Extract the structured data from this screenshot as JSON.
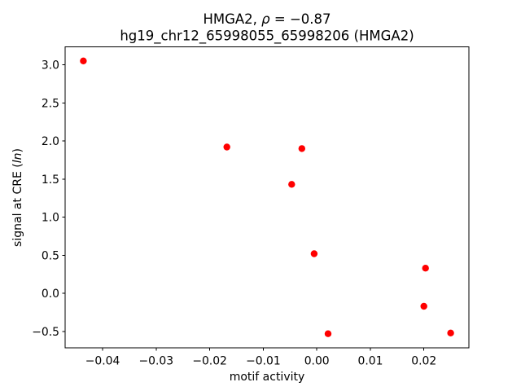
{
  "chart_data": {
    "type": "scatter",
    "title_parts": {
      "pre": "HMGA2, ",
      "rho": "ρ",
      "rest": " = −0.87"
    },
    "subtitle": "hg19_chr12_65998055_65998206 (HMGA2)",
    "xlabel": "motif activity",
    "ylabel_parts": {
      "pre": "signal at CRE (",
      "ital": "ln",
      "post": ")"
    },
    "correlation_rho": -0.87,
    "marker_color": "#ff0000",
    "marker_radius_px": 4.2,
    "xlim": [
      -0.047,
      0.0284
    ],
    "ylim": [
      -0.715,
      3.235
    ],
    "grid": false,
    "legend": "none",
    "xticks": {
      "values": [
        -0.04,
        -0.03,
        -0.02,
        -0.01,
        0.0,
        0.01,
        0.02
      ],
      "labels": [
        "−0.04",
        "−0.03",
        "−0.02",
        "−0.01",
        "0.00",
        "0.01",
        "0.02"
      ]
    },
    "yticks": {
      "values": [
        -0.5,
        0.0,
        0.5,
        1.0,
        1.5,
        2.0,
        2.5,
        3.0
      ],
      "labels": [
        "−0.5",
        "0.0",
        "0.5",
        "1.0",
        "1.5",
        "2.0",
        "2.5",
        "3.0"
      ]
    },
    "points": [
      {
        "x": -0.0436,
        "y": 3.05
      },
      {
        "x": -0.0168,
        "y": 1.92
      },
      {
        "x": -0.0047,
        "y": 1.43
      },
      {
        "x": -0.0028,
        "y": 1.9
      },
      {
        "x": -0.0005,
        "y": 0.52
      },
      {
        "x": 0.0021,
        "y": -0.53
      },
      {
        "x": 0.0203,
        "y": 0.33
      },
      {
        "x": 0.02,
        "y": -0.17
      },
      {
        "x": 0.025,
        "y": -0.52
      }
    ]
  }
}
